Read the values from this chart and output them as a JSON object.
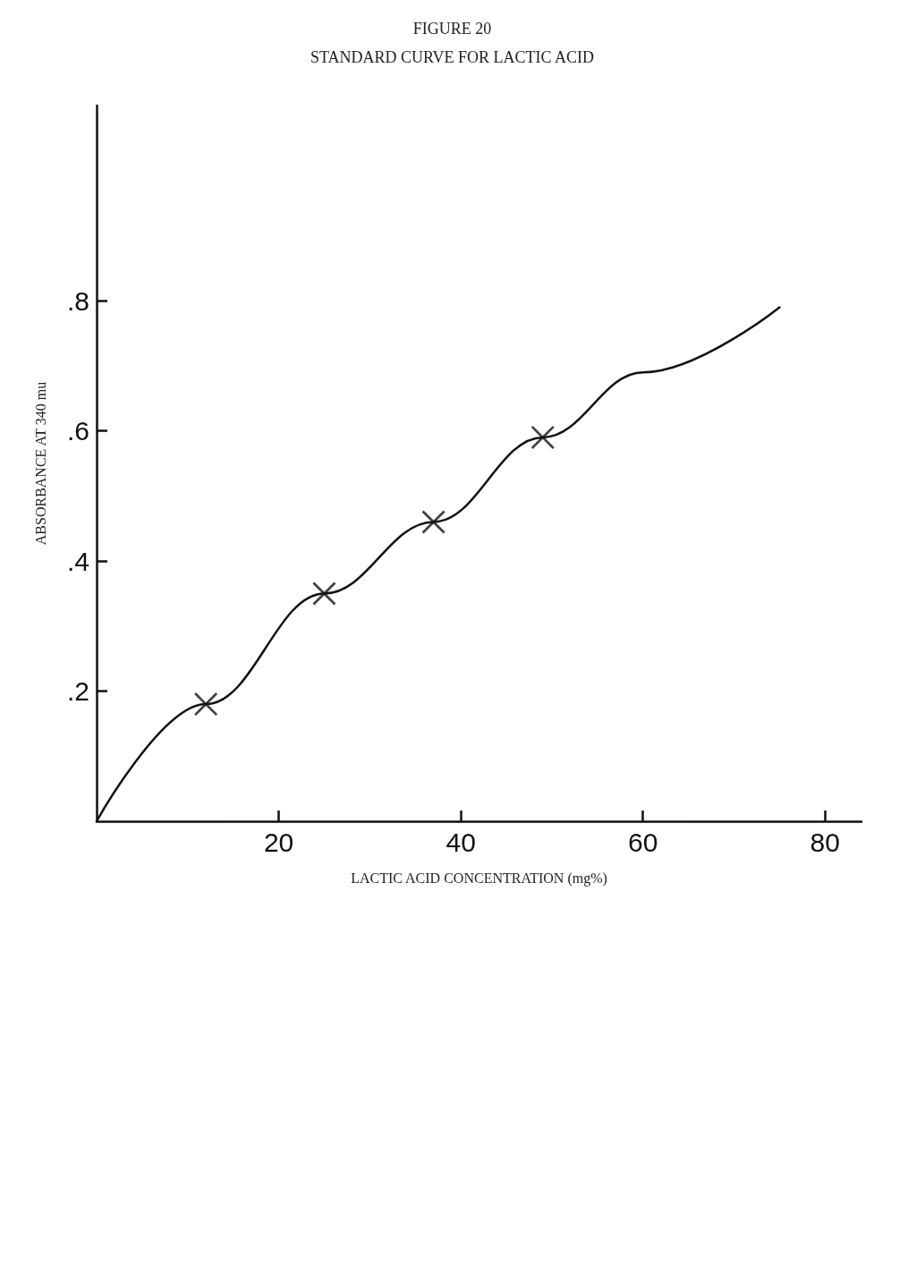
{
  "chart_data": {
    "type": "line",
    "title": "FIGURE 20",
    "subtitle": "STANDARD CURVE FOR LACTIC ACID",
    "xlabel": "LACTIC ACID CONCENTRATION (mg%)",
    "ylabel": "ABSORBANCE AT 340 mu",
    "series": [
      {
        "color": "#111111",
        "marker": "none",
        "x": [
          0,
          12,
          25,
          37,
          49,
          60,
          75
        ],
        "values": [
          0,
          0.18,
          0.35,
          0.46,
          0.59,
          0.69,
          0.79
        ]
      },
      {
        "type": "scatter",
        "color": "#111111",
        "marker": "cross",
        "x": [
          12,
          25,
          37,
          49
        ],
        "values": [
          0.18,
          0.35,
          0.46,
          0.59
        ]
      }
    ],
    "xlim": [
      0,
      84
    ],
    "xticks": [
      20,
      40,
      60,
      80
    ],
    "ylim": [
      0,
      1.1
    ],
    "yticks": [
      {
        "value": 0.2,
        "label": ".2"
      },
      {
        "value": 0.4,
        "label": ".4"
      },
      {
        "value": 0.6,
        "label": ".6"
      },
      {
        "value": 0.8,
        "label": ".8"
      }
    ],
    "grid": false,
    "line_style": "solid"
  }
}
